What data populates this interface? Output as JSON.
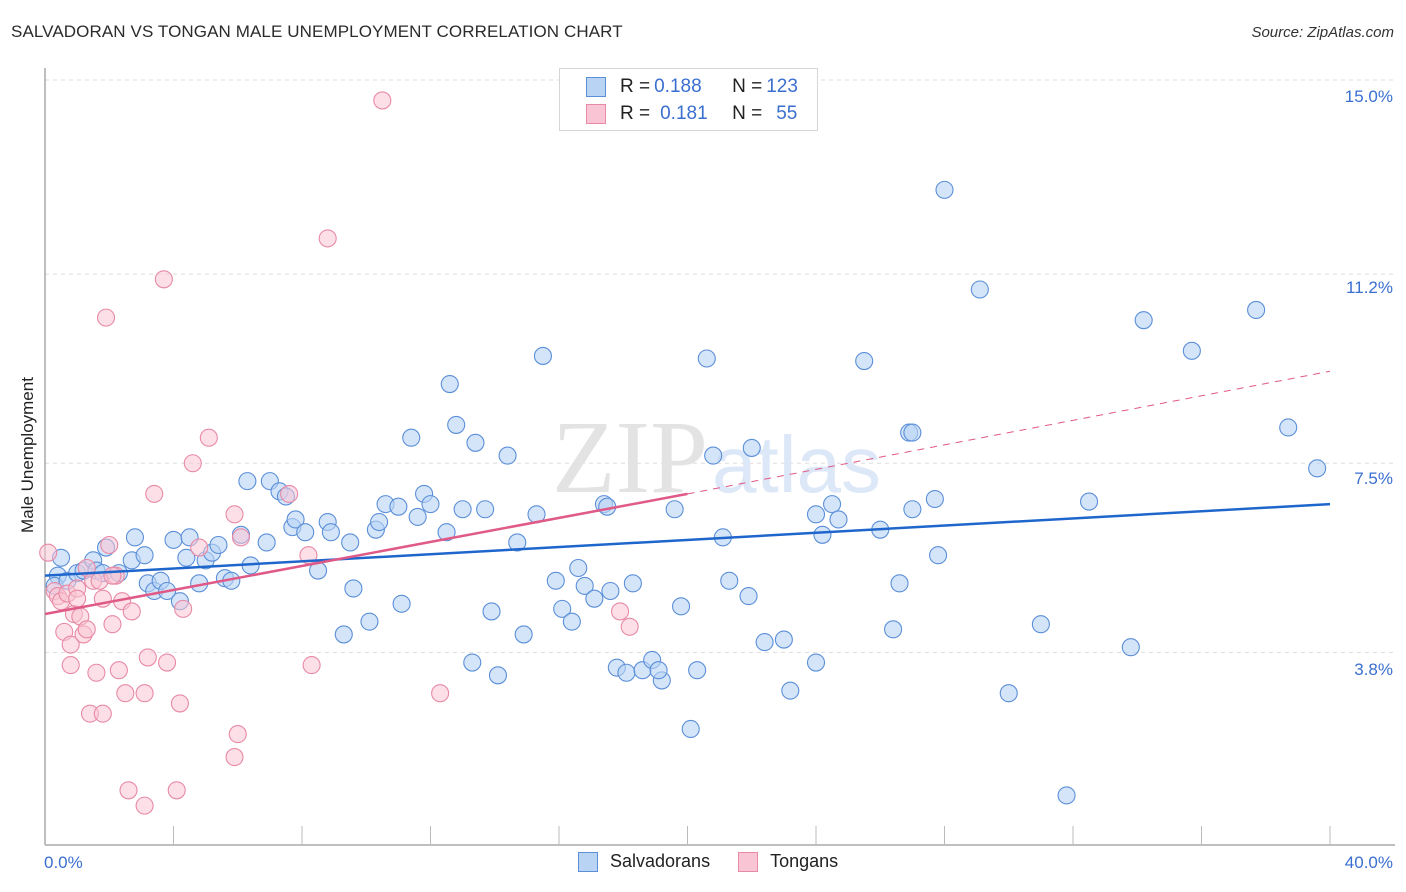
{
  "title": "SALVADORAN VS TONGAN MALE UNEMPLOYMENT CORRELATION CHART",
  "source": "Source: ZipAtlas.com",
  "watermark": {
    "zip": "ZIP",
    "atlas": "atlas"
  },
  "colors": {
    "salvadorans_fill": "#b9d3f5",
    "salvadorans_stroke": "#5b8fd8",
    "salvadorans_line": "#1f66cc",
    "tongans_fill": "#f9c4d3",
    "tongans_stroke": "#e88aa6",
    "tongans_line": "#e05a87",
    "tick_label": "#3a6fd0",
    "grid": "#dddddd"
  },
  "legend": {
    "rows": [
      {
        "r_label": "R = ",
        "r_value": "0.188",
        "n_label": "N = ",
        "n_value": "123"
      },
      {
        "r_label": "R = ",
        "r_value": "0.181",
        "n_label": "N = ",
        "n_value": "55"
      }
    ],
    "series": [
      "Salvadorans",
      "Tongans"
    ]
  },
  "axes": {
    "ylabel": "Male Unemployment",
    "yticks": [
      "15.0%",
      "11.2%",
      "7.5%",
      "3.8%"
    ],
    "xticks": [
      "0.0%",
      "40.0%"
    ]
  },
  "chart_data": {
    "type": "scatter",
    "title": "SALVADORAN VS TONGAN MALE UNEMPLOYMENT CORRELATION CHART",
    "xlabel": "",
    "ylabel": "Male Unemployment",
    "xlim": [
      0,
      40
    ],
    "ylim": [
      0,
      15
    ],
    "ytick_values": [
      15.0,
      11.2,
      7.5,
      3.8
    ],
    "xtick_values": [
      0,
      40
    ],
    "grid": true,
    "legend_position": "top-center",
    "series": [
      {
        "name": "Salvadorans",
        "R": 0.188,
        "N": 123,
        "trend": {
          "x0": 0,
          "y0": 5.3,
          "x1": 40,
          "y1": 6.7
        },
        "points": [
          [
            0.5,
            5.65
          ],
          [
            0.4,
            5.3
          ],
          [
            0.3,
            5.1
          ],
          [
            0.7,
            5.2
          ],
          [
            1.0,
            5.35
          ],
          [
            1.2,
            5.4
          ],
          [
            1.5,
            5.6
          ],
          [
            1.6,
            5.4
          ],
          [
            1.8,
            5.35
          ],
          [
            1.9,
            5.85
          ],
          [
            2.3,
            5.35
          ],
          [
            2.7,
            5.6
          ],
          [
            2.8,
            6.05
          ],
          [
            3.1,
            5.7
          ],
          [
            3.2,
            5.15
          ],
          [
            3.4,
            5.0
          ],
          [
            3.6,
            5.2
          ],
          [
            3.8,
            5.0
          ],
          [
            4.0,
            6.0
          ],
          [
            4.2,
            4.8
          ],
          [
            4.4,
            5.65
          ],
          [
            4.5,
            6.05
          ],
          [
            4.8,
            5.15
          ],
          [
            5.0,
            5.6
          ],
          [
            5.2,
            5.75
          ],
          [
            5.4,
            5.9
          ],
          [
            5.6,
            5.25
          ],
          [
            5.8,
            5.2
          ],
          [
            6.1,
            6.1
          ],
          [
            6.4,
            5.5
          ],
          [
            6.3,
            7.15
          ],
          [
            6.9,
            5.95
          ],
          [
            7.0,
            7.15
          ],
          [
            7.3,
            6.95
          ],
          [
            7.5,
            6.85
          ],
          [
            7.7,
            6.25
          ],
          [
            7.8,
            6.4
          ],
          [
            8.1,
            6.15
          ],
          [
            8.5,
            5.4
          ],
          [
            8.8,
            6.35
          ],
          [
            8.9,
            6.15
          ],
          [
            9.3,
            4.15
          ],
          [
            9.5,
            5.95
          ],
          [
            9.6,
            5.05
          ],
          [
            10.1,
            4.4
          ],
          [
            10.3,
            6.2
          ],
          [
            10.4,
            6.35
          ],
          [
            10.6,
            6.7
          ],
          [
            11.0,
            6.65
          ],
          [
            11.1,
            4.75
          ],
          [
            11.4,
            8.0
          ],
          [
            11.6,
            6.45
          ],
          [
            11.8,
            6.9
          ],
          [
            12.0,
            6.7
          ],
          [
            12.5,
            6.15
          ],
          [
            12.6,
            9.05
          ],
          [
            12.8,
            8.25
          ],
          [
            13.0,
            6.6
          ],
          [
            13.3,
            3.6
          ],
          [
            13.7,
            6.6
          ],
          [
            13.9,
            4.6
          ],
          [
            14.1,
            3.35
          ],
          [
            14.4,
            7.65
          ],
          [
            14.7,
            5.95
          ],
          [
            14.9,
            4.15
          ],
          [
            15.3,
            6.5
          ],
          [
            15.5,
            9.6
          ],
          [
            15.9,
            5.2
          ],
          [
            16.1,
            4.65
          ],
          [
            16.4,
            4.4
          ],
          [
            16.6,
            5.45
          ],
          [
            16.8,
            5.1
          ],
          [
            17.1,
            4.85
          ],
          [
            17.4,
            6.7
          ],
          [
            17.6,
            5.0
          ],
          [
            17.8,
            3.5
          ],
          [
            18.1,
            3.4
          ],
          [
            18.3,
            5.15
          ],
          [
            18.6,
            3.45
          ],
          [
            18.9,
            3.65
          ],
          [
            19.2,
            3.25
          ],
          [
            19.1,
            3.45
          ],
          [
            19.6,
            6.6
          ],
          [
            19.8,
            4.7
          ],
          [
            20.1,
            2.3
          ],
          [
            20.3,
            3.45
          ],
          [
            20.6,
            9.55
          ],
          [
            20.8,
            7.65
          ],
          [
            21.1,
            6.05
          ],
          [
            21.3,
            5.2
          ],
          [
            21.9,
            4.9
          ],
          [
            22.0,
            7.8
          ],
          [
            22.4,
            4.0
          ],
          [
            23.0,
            4.05
          ],
          [
            23.2,
            3.05
          ],
          [
            24.0,
            6.5
          ],
          [
            24.2,
            6.1
          ],
          [
            24.5,
            6.7
          ],
          [
            24.7,
            6.4
          ],
          [
            24.0,
            3.6
          ],
          [
            25.5,
            9.5
          ],
          [
            26.0,
            6.2
          ],
          [
            26.4,
            4.25
          ],
          [
            26.6,
            5.15
          ],
          [
            26.9,
            8.1
          ],
          [
            27.0,
            6.6
          ],
          [
            27.7,
            6.8
          ],
          [
            27.8,
            5.7
          ],
          [
            28.0,
            12.85
          ],
          [
            29.1,
            10.9
          ],
          [
            30.0,
            3.0
          ],
          [
            31.0,
            4.35
          ],
          [
            31.8,
            1.0
          ],
          [
            32.5,
            6.75
          ],
          [
            33.8,
            3.9
          ],
          [
            34.2,
            10.3
          ],
          [
            35.7,
            9.7
          ],
          [
            37.7,
            10.5
          ],
          [
            38.7,
            8.2
          ],
          [
            39.6,
            7.4
          ],
          [
            27.0,
            8.1
          ],
          [
            17.5,
            6.65
          ],
          [
            13.4,
            7.9
          ]
        ]
      },
      {
        "name": "Tongans",
        "R": 0.181,
        "N": 55,
        "trend": {
          "x0": 0,
          "y0": 4.55,
          "x1": 20,
          "y1": 6.9,
          "dashed_to": {
            "x": 40,
            "y": 9.3
          }
        },
        "points": [
          [
            0.1,
            5.75
          ],
          [
            0.3,
            5.0
          ],
          [
            0.4,
            4.9
          ],
          [
            0.5,
            4.8
          ],
          [
            0.6,
            4.2
          ],
          [
            0.7,
            4.95
          ],
          [
            0.8,
            3.95
          ],
          [
            0.8,
            3.55
          ],
          [
            0.9,
            4.55
          ],
          [
            1.0,
            5.05
          ],
          [
            1.0,
            4.85
          ],
          [
            1.1,
            4.5
          ],
          [
            1.2,
            4.15
          ],
          [
            1.3,
            5.45
          ],
          [
            1.3,
            4.25
          ],
          [
            1.4,
            2.6
          ],
          [
            1.5,
            5.2
          ],
          [
            1.6,
            3.4
          ],
          [
            1.7,
            5.2
          ],
          [
            1.8,
            4.85
          ],
          [
            1.8,
            2.6
          ],
          [
            1.9,
            10.35
          ],
          [
            2.0,
            5.9
          ],
          [
            2.1,
            4.35
          ],
          [
            2.2,
            5.3
          ],
          [
            2.3,
            3.45
          ],
          [
            2.4,
            4.8
          ],
          [
            2.5,
            3.0
          ],
          [
            2.6,
            1.1
          ],
          [
            2.7,
            4.6
          ],
          [
            3.1,
            0.8
          ],
          [
            3.1,
            3.0
          ],
          [
            3.2,
            3.7
          ],
          [
            3.4,
            6.9
          ],
          [
            3.7,
            11.1
          ],
          [
            3.8,
            3.6
          ],
          [
            4.1,
            1.1
          ],
          [
            4.2,
            2.8
          ],
          [
            4.3,
            4.65
          ],
          [
            4.6,
            7.5
          ],
          [
            4.8,
            5.85
          ],
          [
            5.1,
            8.0
          ],
          [
            5.9,
            6.5
          ],
          [
            5.9,
            1.75
          ],
          [
            6.0,
            2.2
          ],
          [
            6.1,
            6.05
          ],
          [
            7.6,
            6.9
          ],
          [
            8.2,
            5.7
          ],
          [
            8.3,
            3.55
          ],
          [
            8.8,
            11.9
          ],
          [
            10.5,
            14.6
          ],
          [
            12.3,
            3.0
          ],
          [
            17.9,
            4.6
          ],
          [
            18.2,
            4.3
          ],
          [
            2.1,
            5.3
          ]
        ]
      }
    ]
  }
}
